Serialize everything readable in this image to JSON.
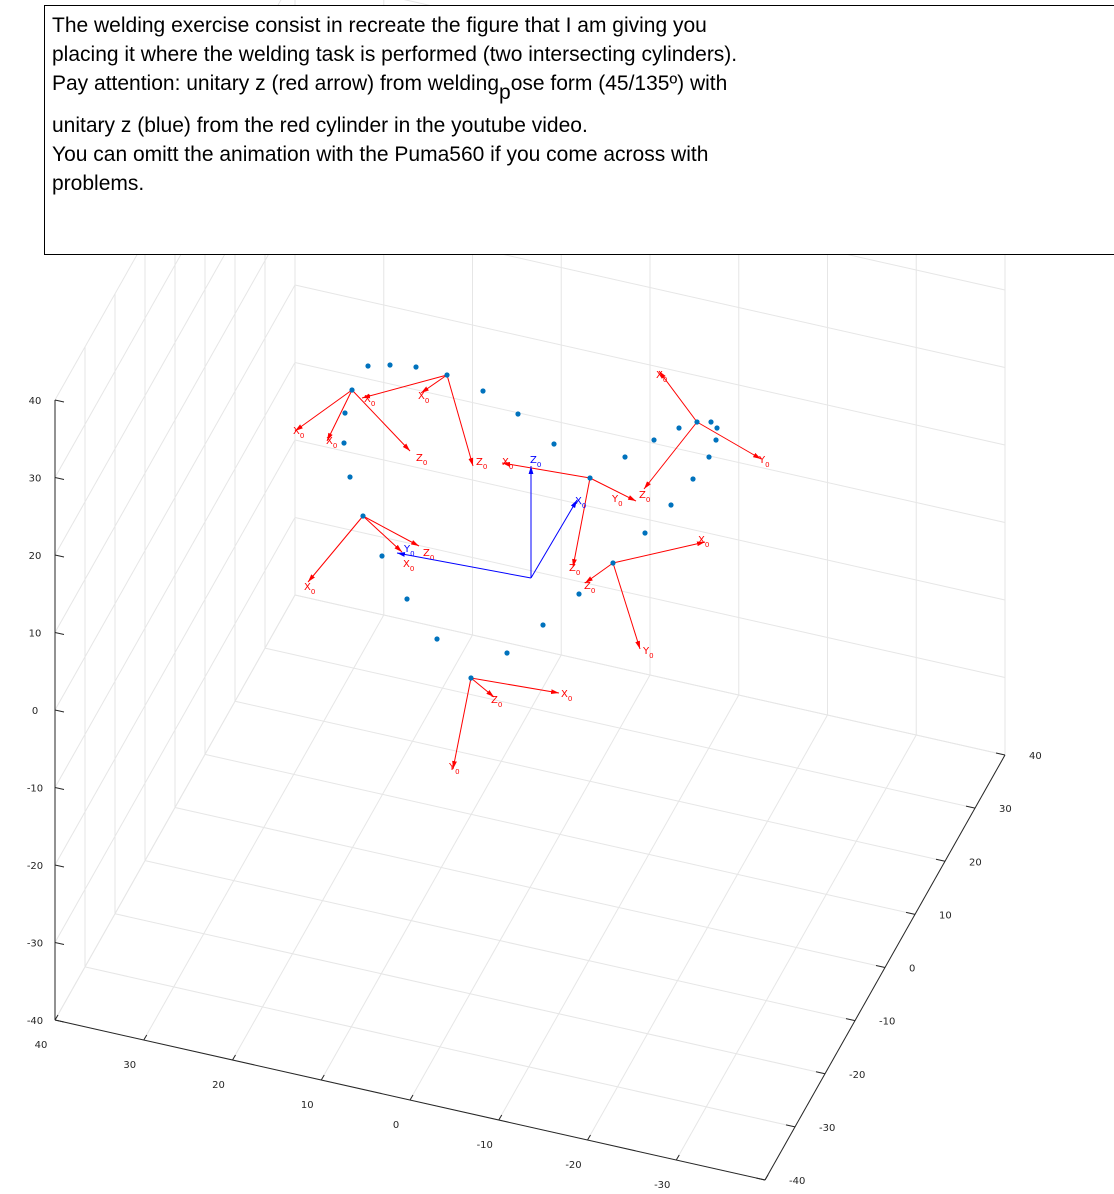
{
  "annotation": {
    "lines_top": [
      "The welding exercise consist in recreate the figure that I am giving you",
      "placing it where the welding task is performed (two intersecting cylinders)."
    ],
    "line3": {
      "before": "Pay attention: unitary z (red arrow) from welding",
      "subscript": "p",
      "after": "ose form (45/135º) with"
    },
    "lines_bottom": [
      "unitary z (blue) from the red cylinder in the youtube video.",
      "You can omitt the animation with the Puma560 if you come across with",
      "problems."
    ]
  },
  "axes": {
    "xticks": [
      40,
      30,
      20,
      10,
      0,
      -10,
      -20,
      -30,
      -40
    ],
    "yticks": [
      -40,
      -30,
      -20,
      -10,
      0,
      10,
      20,
      30,
      40
    ],
    "zticks": [
      -40,
      -30,
      -20,
      -10,
      0,
      10,
      20,
      30,
      40
    ]
  },
  "frame_labels": {
    "x": "X",
    "y": "Y",
    "z": "Z",
    "subscript": "0"
  }
}
